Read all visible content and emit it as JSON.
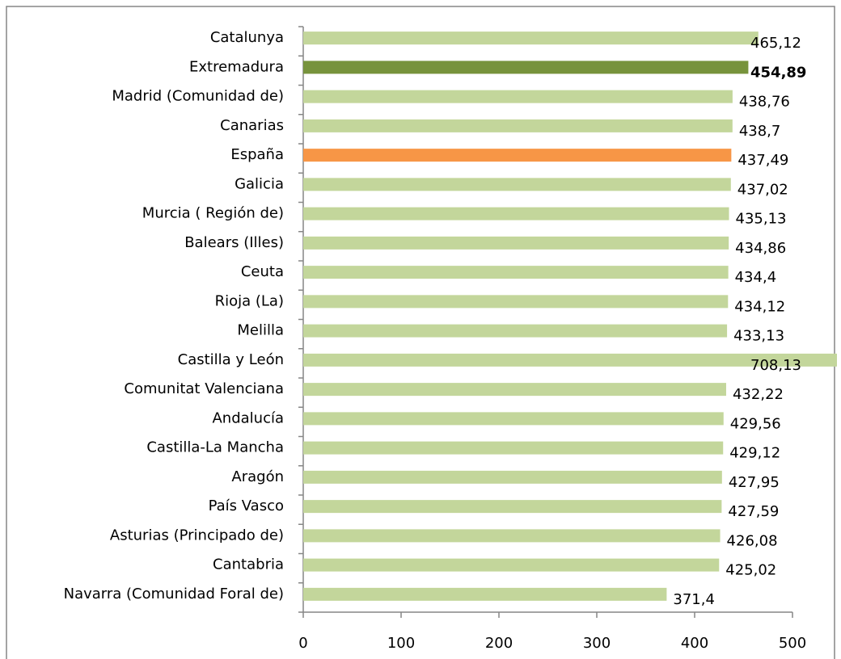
{
  "chart_data": {
    "type": "barh",
    "categories": [
      "Catalunya",
      "Extremadura",
      "Madrid (Comunidad de)",
      "Canarias",
      "España",
      "Galicia",
      "Murcia ( Región de)",
      "Balears (Illes)",
      "Ceuta",
      "Rioja (La)",
      "Melilla",
      "Castilla y León",
      "Comunitat Valenciana",
      "Andalucía",
      "Castilla-La Mancha",
      "Aragón",
      "País Vasco",
      "Asturias (Principado de)",
      "Cantabria",
      "Navarra (Comunidad Foral de)"
    ],
    "values": [
      465.12,
      454.89,
      438.76,
      438.7,
      437.49,
      437.02,
      435.13,
      434.86,
      434.4,
      434.12,
      433.13,
      708.13,
      432.22,
      429.56,
      429.12,
      427.95,
      427.59,
      426.08,
      425.02,
      371.4
    ],
    "value_labels": [
      "465,12",
      "454,89",
      "438,76",
      "438,7",
      "437,49",
      "437,02",
      "435,13",
      "434,86",
      "434,4",
      "434,12",
      "433,13",
      "708,13",
      "432,22",
      "429,56",
      "429,12",
      "427,95",
      "427,59",
      "426,08",
      "425,02",
      "371,4"
    ],
    "colors": [
      "#c3d69b",
      "#77933c",
      "#c3d69b",
      "#c3d69b",
      "#f79646",
      "#c3d69b",
      "#c3d69b",
      "#c3d69b",
      "#c3d69b",
      "#c3d69b",
      "#c3d69b",
      "#c3d69b",
      "#c3d69b",
      "#c3d69b",
      "#c3d69b",
      "#c3d69b",
      "#c3d69b",
      "#c3d69b",
      "#c3d69b",
      "#c3d69b"
    ],
    "bold_value_labels": [
      1
    ],
    "xlim": [
      0,
      500
    ],
    "xticks": [
      0,
      100,
      200,
      300,
      400,
      500
    ]
  }
}
